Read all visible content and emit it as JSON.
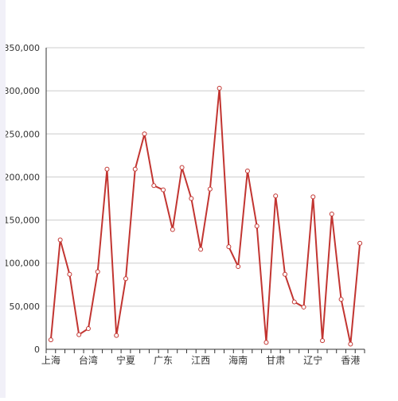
{
  "chart_data": {
    "type": "line",
    "title": "",
    "xlabel": "",
    "ylabel": "",
    "ylim": [
      0,
      350000
    ],
    "yticks": [
      0,
      50000,
      100000,
      150000,
      200000,
      250000,
      300000,
      350000
    ],
    "ytick_labels": [
      "0",
      "50,000",
      "100,000",
      "150,000",
      "200,000",
      "250,000",
      "300,000",
      "350,000"
    ],
    "xtick_labels": [
      "上海",
      "台湾",
      "宁夏",
      "广东",
      "江西",
      "海南",
      "甘肃",
      "辽宁",
      "香港"
    ],
    "grid": true,
    "legend": "none",
    "colors": {
      "line": "#c23531",
      "grid": "#cccccc",
      "axis": "#333333",
      "text": "#333333"
    },
    "series": [
      {
        "values": [
          11000,
          127000,
          87000,
          17000,
          24000,
          90000,
          209000,
          16000,
          82000,
          209000,
          250000,
          190000,
          185000,
          139000,
          211000,
          175000,
          116000,
          186000,
          303000,
          119000,
          96000,
          207000,
          143000,
          8000,
          178000,
          87000,
          55000,
          49000,
          177000,
          10000,
          157000,
          58000,
          6000,
          123000
        ]
      }
    ]
  }
}
